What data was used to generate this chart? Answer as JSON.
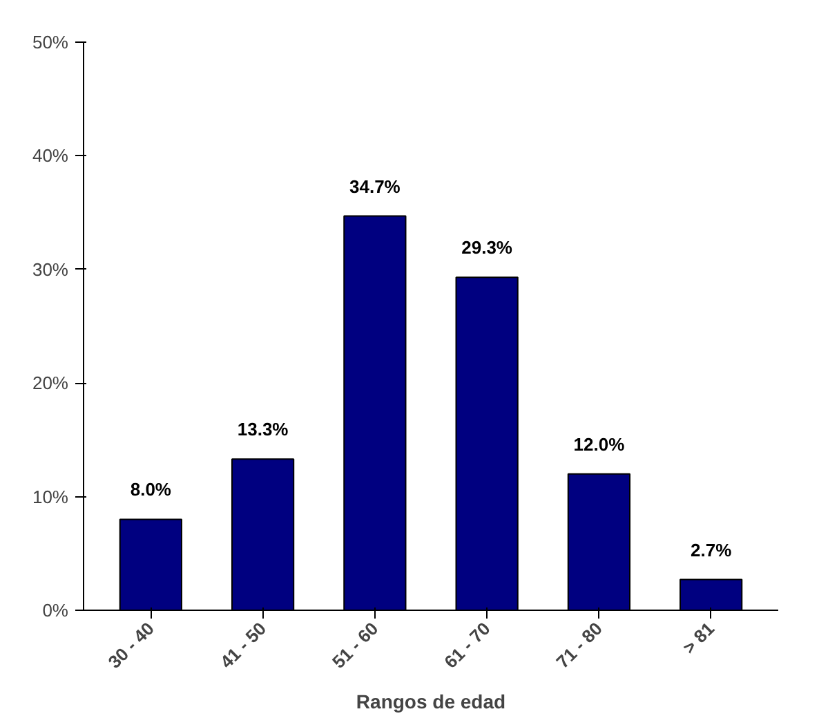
{
  "chart_data": {
    "type": "bar",
    "xlabel": "Rangos de edad",
    "categories": [
      "30 - 40",
      "41 - 50",
      "51 - 60",
      "61 - 70",
      "71 - 80",
      "> 81"
    ],
    "values": [
      8.0,
      13.3,
      34.7,
      29.3,
      12.0,
      2.7
    ],
    "value_labels": [
      "8.0%",
      "13.3%",
      "34.7%",
      "29.3%",
      "12.0%",
      "2.7%"
    ],
    "color": "#000080",
    "ylim": [
      0,
      50
    ],
    "yticks": [
      {
        "value": 0,
        "label": "0%"
      },
      {
        "value": 10,
        "label": "10%"
      },
      {
        "value": 20,
        "label": "20%"
      },
      {
        "value": 30,
        "label": "30%"
      },
      {
        "value": 40,
        "label": "40%"
      },
      {
        "value": 50,
        "label": "50%"
      }
    ],
    "grid": false
  }
}
